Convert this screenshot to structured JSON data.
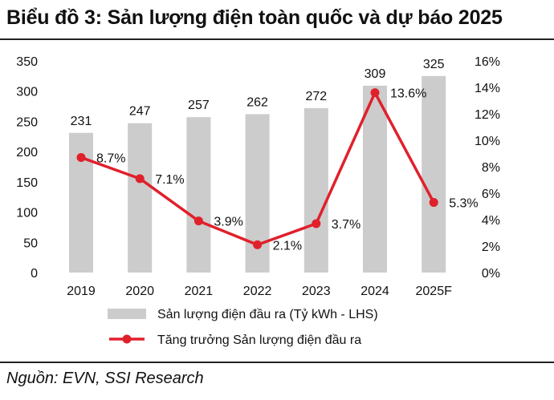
{
  "title": "Biểu đồ 3: Sản lượng điện toàn quốc và dự báo 2025",
  "source": "Nguồn: EVN, SSI Research",
  "colors": {
    "bar": "#cccccc",
    "line": "#e0202b",
    "text": "#111111"
  },
  "chart_data": {
    "type": "bar",
    "categories": [
      "2019",
      "2020",
      "2021",
      "2022",
      "2023",
      "2024",
      "2025F"
    ],
    "series": [
      {
        "name": "Sản lượng điện đầu ra (Tỷ kWh - LHS)",
        "type": "bar",
        "axis": "left",
        "values": [
          231,
          247,
          257,
          262,
          272,
          309,
          325
        ],
        "labels": [
          "231",
          "247",
          "257",
          "262",
          "272",
          "309",
          "325"
        ]
      },
      {
        "name": "Tăng trưởng Sản lượng điện đầu ra",
        "type": "line",
        "axis": "right",
        "values": [
          8.7,
          7.1,
          3.9,
          2.1,
          3.7,
          13.6,
          5.3
        ],
        "labels": [
          "8.7%",
          "7.1%",
          "3.9%",
          "2.1%",
          "3.7%",
          "13.6%",
          "5.3%"
        ]
      }
    ],
    "y_left": {
      "range": [
        0,
        350
      ],
      "ticks": [
        "0",
        "50",
        "100",
        "150",
        "200",
        "250",
        "300",
        "350"
      ]
    },
    "y_right": {
      "range": [
        0,
        16
      ],
      "ticks": [
        "0%",
        "2%",
        "4%",
        "6%",
        "8%",
        "10%",
        "12%",
        "14%",
        "16%"
      ]
    },
    "grid": false,
    "legend_position": "bottom"
  }
}
